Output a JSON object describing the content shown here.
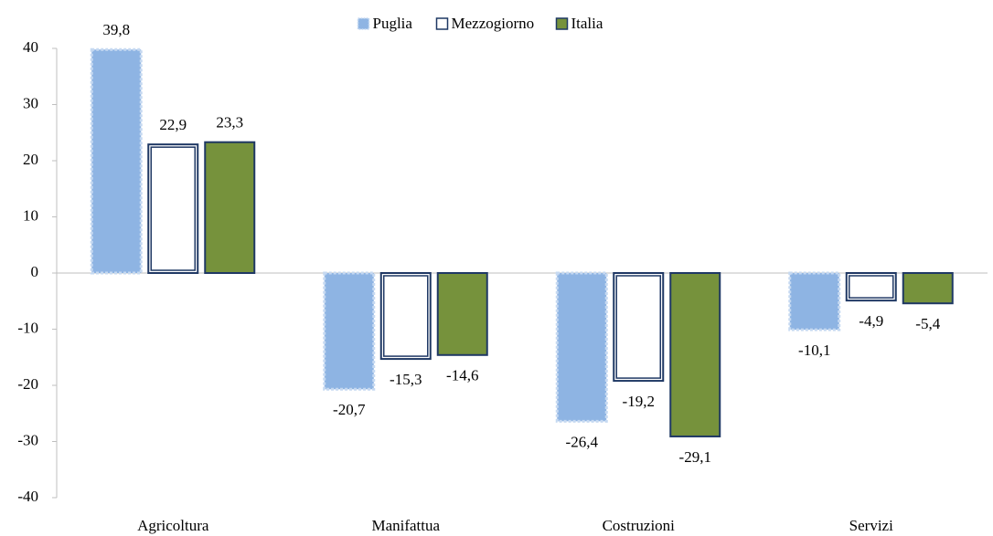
{
  "chart_data": {
    "type": "bar",
    "categories": [
      "Agricoltura",
      "Manifattua",
      "Costruzioni",
      "Servizi"
    ],
    "series": [
      {
        "name": "Puglia",
        "color": "#8eb4e3",
        "edgecolor": "#c6d9f1",
        "values": [
          39.8,
          -20.7,
          -26.4,
          -10.1
        ],
        "value_labels": [
          "39,8",
          "-20,7",
          "-26,4",
          "-10,1"
        ]
      },
      {
        "name": "Mezzogiorno",
        "color": "#ffffff",
        "edgecolor": "#1f3864",
        "values": [
          22.9,
          -15.3,
          -19.2,
          -4.9
        ],
        "value_labels": [
          "22,9",
          "-15,3",
          "-19,2",
          "-4,9"
        ]
      },
      {
        "name": "Italia",
        "color": "#76923c",
        "edgecolor": "#1f3864",
        "values": [
          23.3,
          -14.6,
          -29.1,
          -5.4
        ],
        "value_labels": [
          "23,3",
          "-14,6",
          "-29,1",
          "-5,4"
        ]
      }
    ],
    "ylim": [
      -40,
      40
    ],
    "yticks": [
      -40,
      -30,
      -20,
      -10,
      0,
      10,
      20,
      30,
      40
    ],
    "legend": "top"
  }
}
